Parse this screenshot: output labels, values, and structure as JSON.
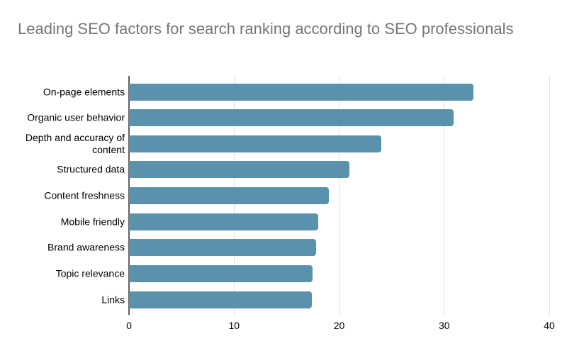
{
  "chart_data": {
    "type": "bar",
    "orientation": "horizontal",
    "title": "Leading SEO factors for search ranking according to SEO professionals",
    "categories": [
      "On-page elements",
      "Organic user behavior",
      "Depth and accuracy of content",
      "Structured data",
      "Content freshness",
      "Mobile friendly",
      "Brand awareness",
      "Topic relevance",
      "Links"
    ],
    "values": [
      32.8,
      30.9,
      24,
      21,
      19,
      18,
      17.8,
      17.5,
      17.4
    ],
    "xlabel": "",
    "ylabel": "",
    "xlim": [
      0,
      40
    ],
    "xticks": [
      0,
      10,
      20,
      30,
      40
    ],
    "grid": "vertical-gridlines-on",
    "legend": "none",
    "colors": {
      "bar": "#5a92ad",
      "gridline": "#e0e0e0",
      "axis_line": "#616161",
      "title_text": "#757575",
      "label_text": "#000000",
      "background": "#ffffff"
    }
  }
}
